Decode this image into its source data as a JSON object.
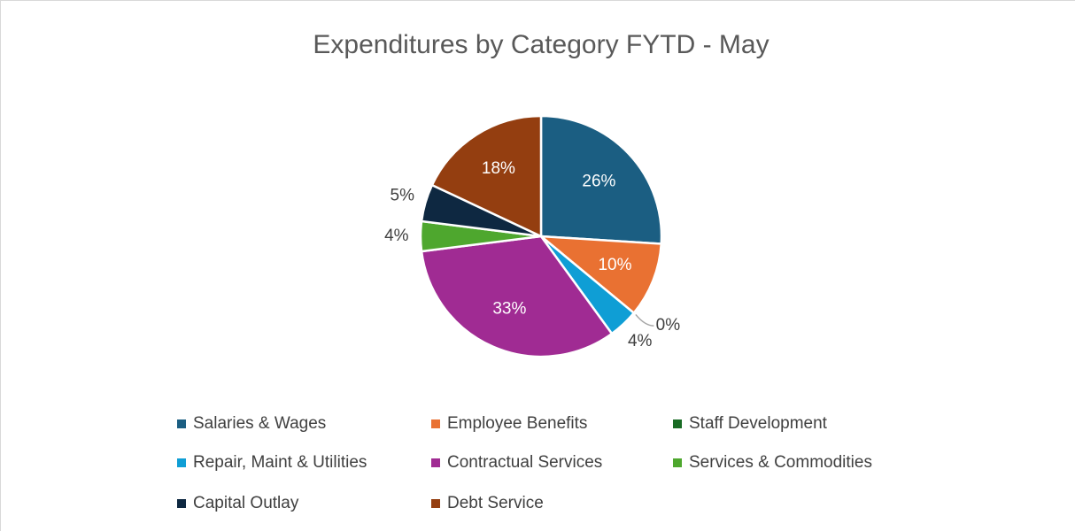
{
  "chart_data": {
    "type": "pie",
    "title": "Expenditures by Category FYTD - May",
    "categories": [
      "Salaries & Wages",
      "Employee Benefits",
      "Staff Development",
      "Repair, Maint & Utilities",
      "Contractual Services",
      "Services & Commodities",
      "Capital Outlay",
      "Debt Service"
    ],
    "values": [
      26,
      10,
      0,
      4,
      33,
      4,
      5,
      18
    ],
    "value_labels": [
      "26%",
      "10%",
      "0%",
      "4%",
      "33%",
      "4%",
      "5%",
      "18%"
    ],
    "colors": [
      "#1b5e82",
      "#e97132",
      "#196b24",
      "#0f9ed5",
      "#a02b93",
      "#4ea72e",
      "#0e2841",
      "#943e10"
    ],
    "legend": "bottom"
  }
}
